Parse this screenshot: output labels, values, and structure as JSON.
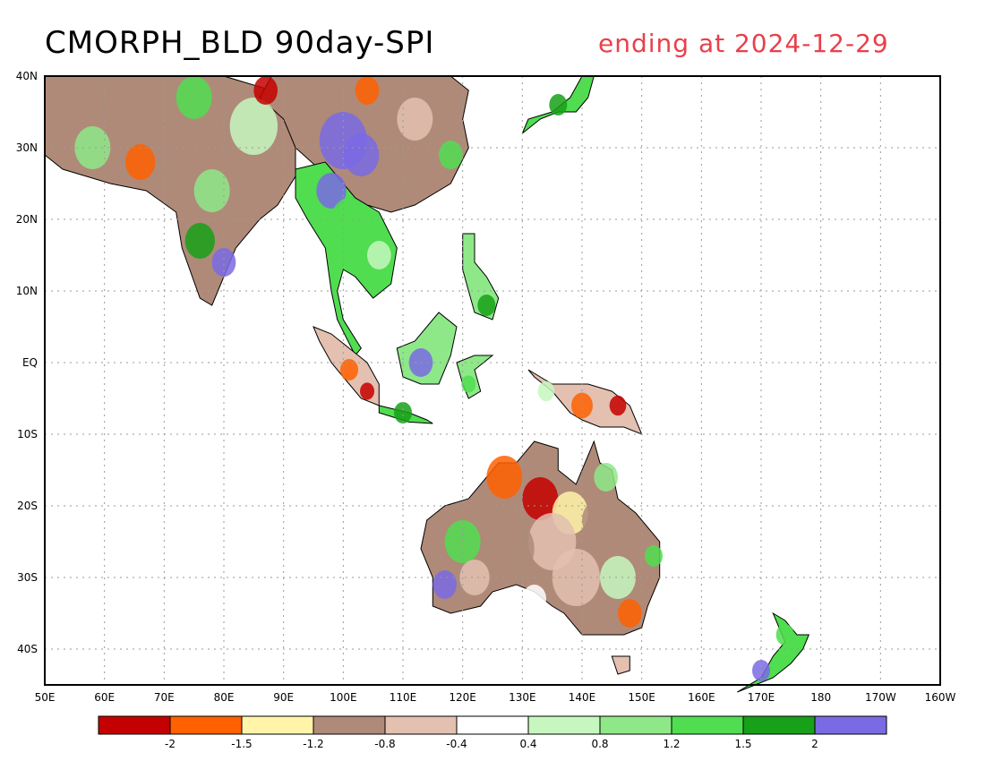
{
  "title": "CMORPH_BLD 90day-SPI",
  "subtitle": "ending at 2024-12-29",
  "colors": {
    "title": "#000000",
    "subtitle": "#e8404c",
    "frame": "#000000",
    "grid": "#9a9a9a",
    "coast": "#000000"
  },
  "map": {
    "lon_range": [
      50,
      200
    ],
    "lat_range": [
      -45,
      40
    ],
    "lat_labels": [
      "40N",
      "30N",
      "20N",
      "10N",
      "EQ",
      "10S",
      "20S",
      "30S",
      "40S"
    ],
    "lon_labels": [
      "50E",
      "60E",
      "70E",
      "80E",
      "90E",
      "100E",
      "110E",
      "120E",
      "130E",
      "140E",
      "150E",
      "160E",
      "170E",
      "180",
      "170W",
      "160W"
    ]
  },
  "legend": {
    "colors": [
      "#c40000",
      "#ff6000",
      "#fff4a8",
      "#b08a78",
      "#e3c0b0",
      "#ffffff",
      "#c6f7be",
      "#8ee888",
      "#50dd50",
      "#18a018",
      "#7a6ae4"
    ],
    "labels": [
      "-2",
      "-1.5",
      "-1.2",
      "-0.8",
      "-0.4",
      "0.4",
      "0.8",
      "1.2",
      "1.5",
      "2"
    ]
  },
  "regions": [
    {
      "name": "south-asia",
      "fill": "#b08a78"
    },
    {
      "name": "china",
      "fill": "#b08a78"
    },
    {
      "name": "indochina",
      "fill": "#50dd50"
    },
    {
      "name": "sumatra",
      "fill": "#e3c0b0"
    },
    {
      "name": "borneo",
      "fill": "#8ee888"
    },
    {
      "name": "java",
      "fill": "#50dd50"
    },
    {
      "name": "sulawesi",
      "fill": "#8ee888"
    },
    {
      "name": "new-guinea",
      "fill": "#e3c0b0"
    },
    {
      "name": "philippines",
      "fill": "#8ee888"
    },
    {
      "name": "japan",
      "fill": "#50dd50"
    },
    {
      "name": "australia",
      "fill": "#b08a78"
    },
    {
      "name": "tasmania",
      "fill": "#e3c0b0"
    },
    {
      "name": "new-zealand",
      "fill": "#50dd50"
    }
  ]
}
